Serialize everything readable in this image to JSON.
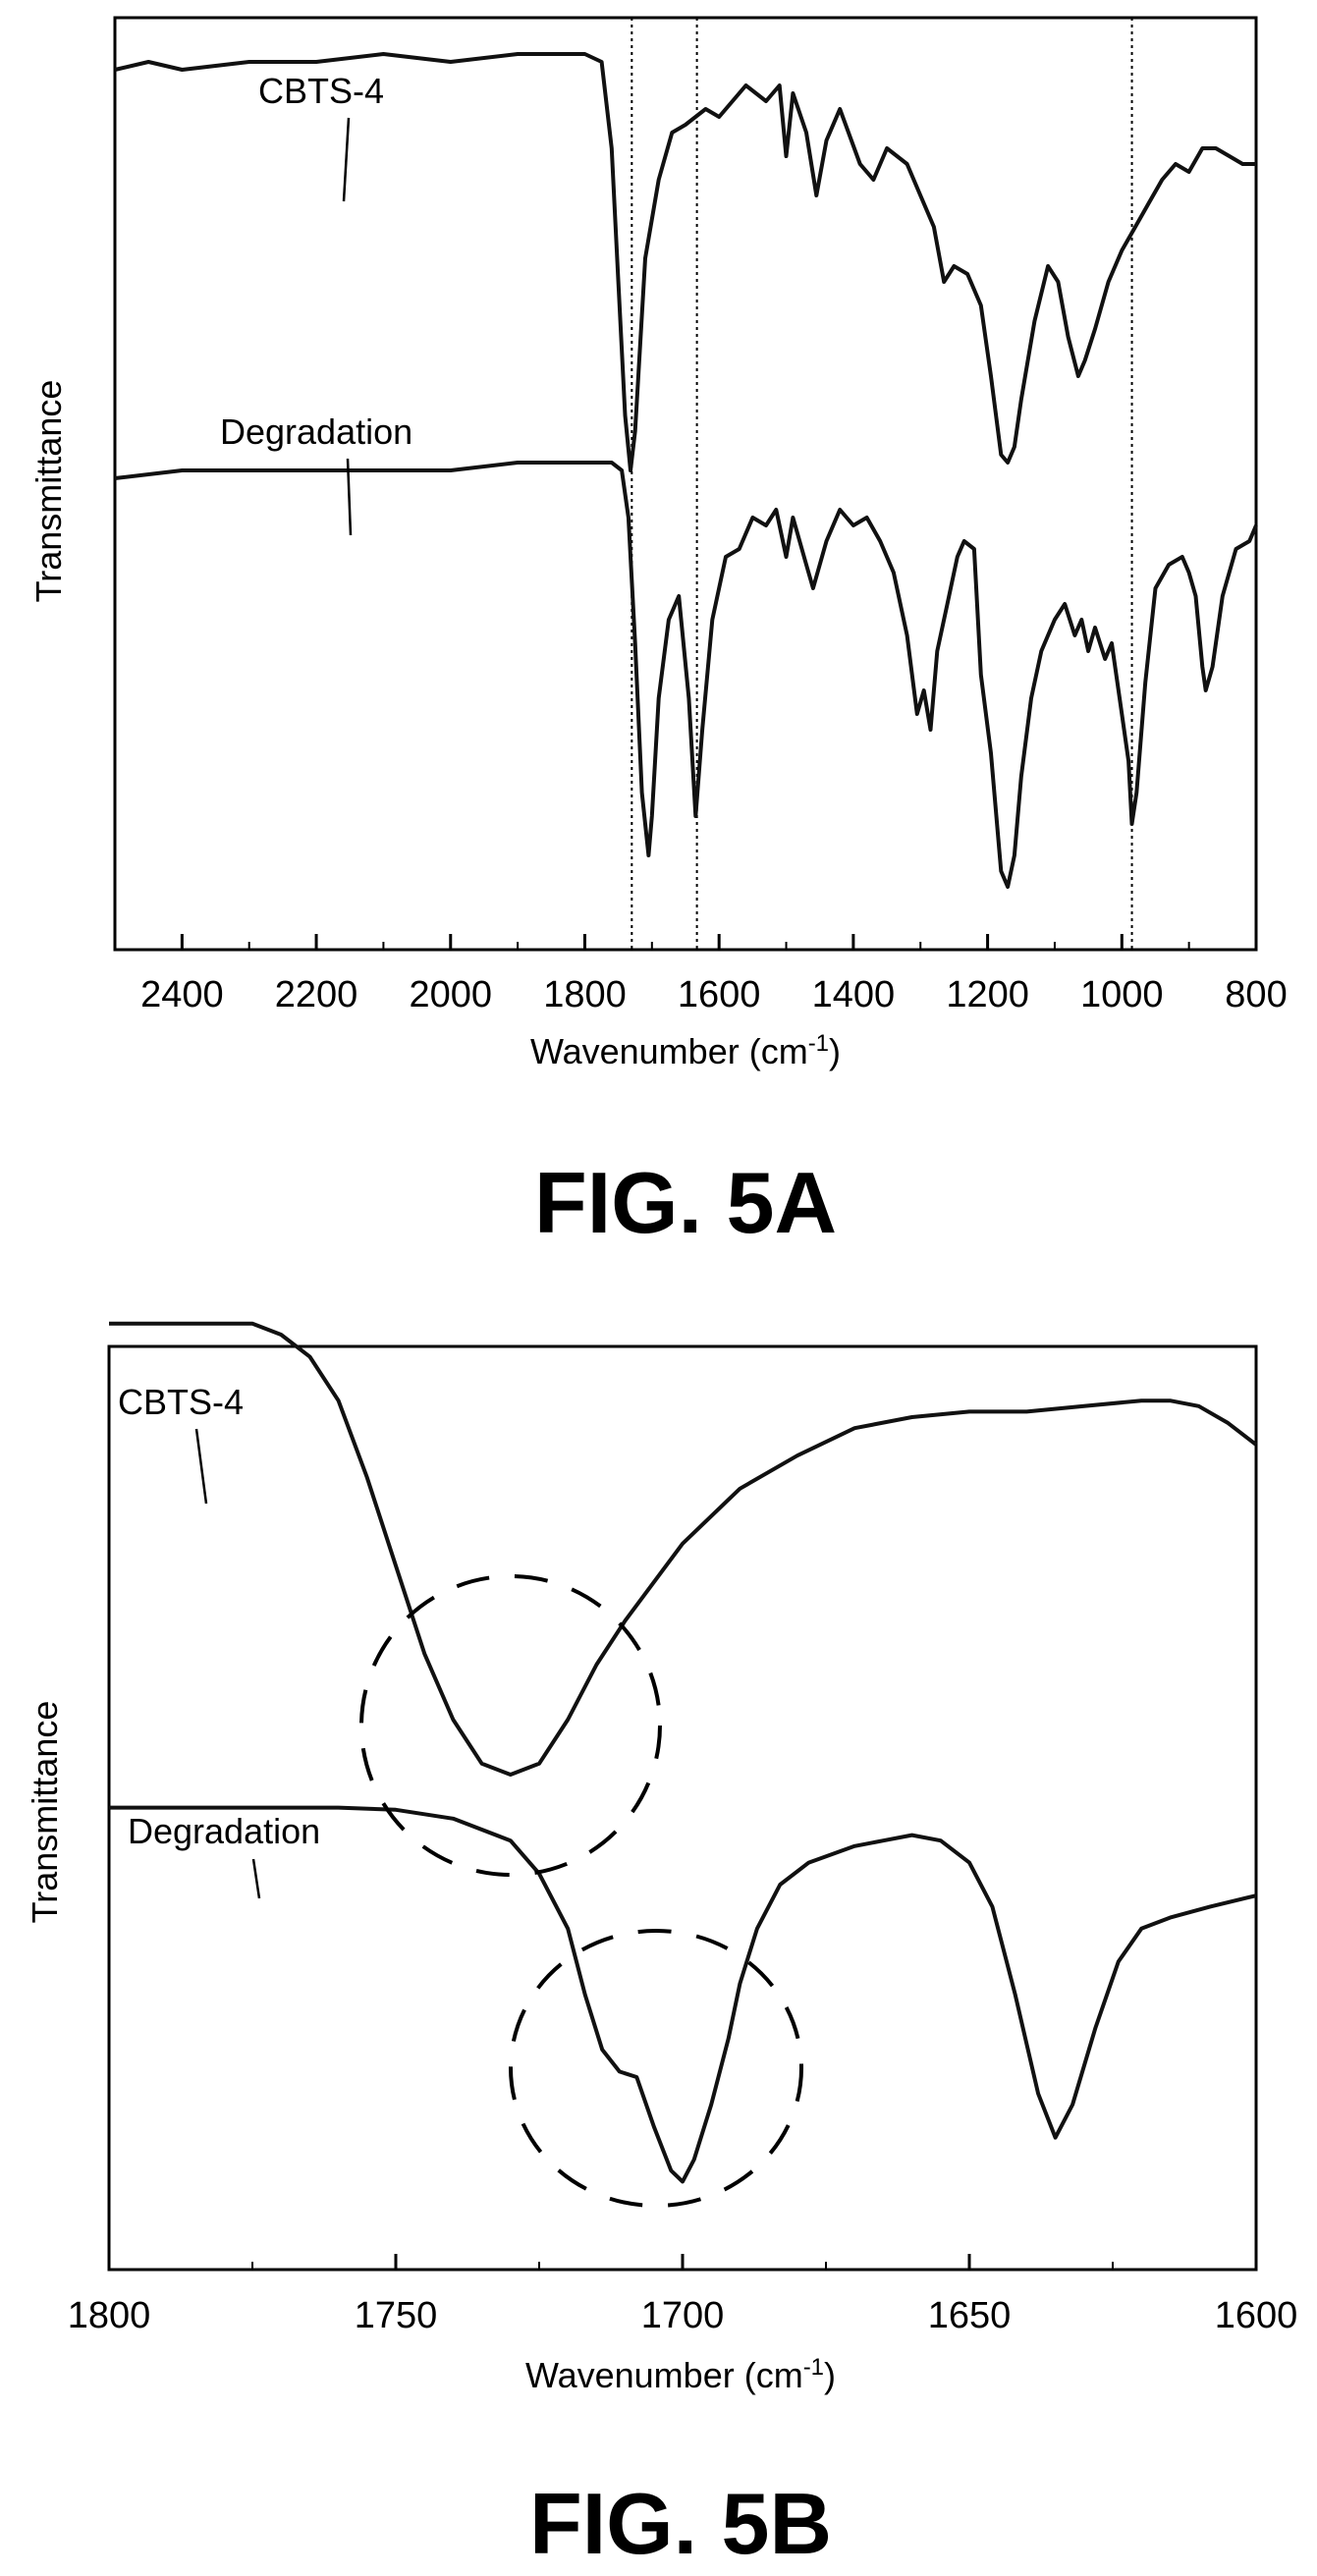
{
  "chart_data": [
    {
      "type": "line",
      "caption": "FIG. 5A",
      "xlabel": "Wavenumber (cm",
      "xlabel_sup": "-1",
      "xlabel_close": ")",
      "ylabel": "Transmittance",
      "xlim": [
        2500,
        800
      ],
      "x_reversed": true,
      "y_ticks_shown": false,
      "x_ticks": [
        "2400",
        "2200",
        "2000",
        "1800",
        "1600",
        "1400",
        "1200",
        "1000",
        "800"
      ],
      "reference_lines": [
        1730,
        1633,
        985
      ],
      "series": [
        {
          "name": "CBTS-4",
          "points": [
            [
              2500,
              0.82
            ],
            [
              2450,
              0.83
            ],
            [
              2400,
              0.82
            ],
            [
              2300,
              0.83
            ],
            [
              2200,
              0.83
            ],
            [
              2100,
              0.84
            ],
            [
              2000,
              0.83
            ],
            [
              1900,
              0.84
            ],
            [
              1800,
              0.84
            ],
            [
              1775,
              0.83
            ],
            [
              1760,
              0.72
            ],
            [
              1750,
              0.55
            ],
            [
              1740,
              0.38
            ],
            [
              1732,
              0.31
            ],
            [
              1725,
              0.36
            ],
            [
              1710,
              0.58
            ],
            [
              1690,
              0.68
            ],
            [
              1670,
              0.74
            ],
            [
              1650,
              0.75
            ],
            [
              1620,
              0.77
            ],
            [
              1600,
              0.76
            ],
            [
              1560,
              0.8
            ],
            [
              1530,
              0.78
            ],
            [
              1510,
              0.8
            ],
            [
              1500,
              0.71
            ],
            [
              1490,
              0.79
            ],
            [
              1470,
              0.74
            ],
            [
              1455,
              0.66
            ],
            [
              1440,
              0.73
            ],
            [
              1420,
              0.77
            ],
            [
              1390,
              0.7
            ],
            [
              1370,
              0.68
            ],
            [
              1350,
              0.72
            ],
            [
              1320,
              0.7
            ],
            [
              1300,
              0.66
            ],
            [
              1280,
              0.62
            ],
            [
              1265,
              0.55
            ],
            [
              1250,
              0.57
            ],
            [
              1230,
              0.56
            ],
            [
              1210,
              0.52
            ],
            [
              1195,
              0.43
            ],
            [
              1180,
              0.33
            ],
            [
              1170,
              0.32
            ],
            [
              1160,
              0.34
            ],
            [
              1150,
              0.4
            ],
            [
              1130,
              0.5
            ],
            [
              1110,
              0.57
            ],
            [
              1095,
              0.55
            ],
            [
              1080,
              0.48
            ],
            [
              1065,
              0.43
            ],
            [
              1055,
              0.45
            ],
            [
              1040,
              0.49
            ],
            [
              1020,
              0.55
            ],
            [
              1000,
              0.59
            ],
            [
              980,
              0.62
            ],
            [
              960,
              0.65
            ],
            [
              940,
              0.68
            ],
            [
              920,
              0.7
            ],
            [
              900,
              0.69
            ],
            [
              880,
              0.72
            ],
            [
              860,
              0.72
            ],
            [
              840,
              0.71
            ],
            [
              820,
              0.7
            ],
            [
              800,
              0.7
            ]
          ]
        },
        {
          "name": "Degradation",
          "points": [
            [
              2500,
              0.3
            ],
            [
              2400,
              0.31
            ],
            [
              2300,
              0.31
            ],
            [
              2200,
              0.31
            ],
            [
              2100,
              0.31
            ],
            [
              2000,
              0.31
            ],
            [
              1900,
              0.32
            ],
            [
              1800,
              0.32
            ],
            [
              1760,
              0.32
            ],
            [
              1745,
              0.31
            ],
            [
              1735,
              0.25
            ],
            [
              1725,
              0.09
            ],
            [
              1715,
              -0.1
            ],
            [
              1705,
              -0.18
            ],
            [
              1700,
              -0.13
            ],
            [
              1690,
              0.02
            ],
            [
              1675,
              0.12
            ],
            [
              1660,
              0.15
            ],
            [
              1645,
              0.02
            ],
            [
              1635,
              -0.13
            ],
            [
              1625,
              -0.02
            ],
            [
              1610,
              0.12
            ],
            [
              1590,
              0.2
            ],
            [
              1570,
              0.21
            ],
            [
              1550,
              0.25
            ],
            [
              1530,
              0.24
            ],
            [
              1515,
              0.26
            ],
            [
              1500,
              0.2
            ],
            [
              1490,
              0.25
            ],
            [
              1470,
              0.19
            ],
            [
              1460,
              0.16
            ],
            [
              1440,
              0.22
            ],
            [
              1420,
              0.26
            ],
            [
              1400,
              0.24
            ],
            [
              1380,
              0.25
            ],
            [
              1360,
              0.22
            ],
            [
              1340,
              0.18
            ],
            [
              1320,
              0.1
            ],
            [
              1305,
              0.0
            ],
            [
              1295,
              0.03
            ],
            [
              1285,
              -0.02
            ],
            [
              1275,
              0.08
            ],
            [
              1260,
              0.14
            ],
            [
              1245,
              0.2
            ],
            [
              1235,
              0.22
            ],
            [
              1220,
              0.21
            ],
            [
              1210,
              0.05
            ],
            [
              1195,
              -0.05
            ],
            [
              1180,
              -0.2
            ],
            [
              1170,
              -0.22
            ],
            [
              1160,
              -0.18
            ],
            [
              1150,
              -0.08
            ],
            [
              1135,
              0.02
            ],
            [
              1120,
              0.08
            ],
            [
              1100,
              0.12
            ],
            [
              1085,
              0.14
            ],
            [
              1070,
              0.1
            ],
            [
              1060,
              0.12
            ],
            [
              1050,
              0.08
            ],
            [
              1040,
              0.11
            ],
            [
              1025,
              0.07
            ],
            [
              1015,
              0.09
            ],
            [
              1000,
              0.0
            ],
            [
              990,
              -0.06
            ],
            [
              985,
              -0.14
            ],
            [
              978,
              -0.1
            ],
            [
              965,
              0.04
            ],
            [
              950,
              0.16
            ],
            [
              930,
              0.19
            ],
            [
              910,
              0.2
            ],
            [
              900,
              0.18
            ],
            [
              890,
              0.15
            ],
            [
              880,
              0.06
            ],
            [
              875,
              0.03
            ],
            [
              865,
              0.06
            ],
            [
              850,
              0.15
            ],
            [
              830,
              0.21
            ],
            [
              810,
              0.22
            ],
            [
              800,
              0.24
            ]
          ]
        }
      ]
    },
    {
      "type": "line",
      "caption": "FIG. 5B",
      "xlabel": "Wavenumber (cm",
      "xlabel_sup": "-1",
      "xlabel_close": ")",
      "ylabel": "Transmittance",
      "xlim": [
        1800,
        1600
      ],
      "x_reversed": true,
      "y_ticks_shown": false,
      "x_ticks": [
        "1800",
        "1750",
        "1700",
        "1650",
        "1600"
      ],
      "annotations": [
        "dashed circle around CBTS-4 minimum near 1730",
        "dashed circle around Degradation doublet near 1705"
      ],
      "series": [
        {
          "name": "CBTS-4",
          "points": [
            [
              1800,
              0.86
            ],
            [
              1790,
              0.86
            ],
            [
              1780,
              0.86
            ],
            [
              1775,
              0.86
            ],
            [
              1770,
              0.85
            ],
            [
              1765,
              0.83
            ],
            [
              1760,
              0.79
            ],
            [
              1755,
              0.72
            ],
            [
              1750,
              0.64
            ],
            [
              1745,
              0.56
            ],
            [
              1740,
              0.5
            ],
            [
              1735,
              0.46
            ],
            [
              1730,
              0.45
            ],
            [
              1725,
              0.46
            ],
            [
              1720,
              0.5
            ],
            [
              1715,
              0.55
            ],
            [
              1710,
              0.59
            ],
            [
              1700,
              0.66
            ],
            [
              1690,
              0.71
            ],
            [
              1680,
              0.74
            ],
            [
              1670,
              0.765
            ],
            [
              1660,
              0.775
            ],
            [
              1650,
              0.78
            ],
            [
              1640,
              0.78
            ],
            [
              1630,
              0.785
            ],
            [
              1620,
              0.79
            ],
            [
              1615,
              0.79
            ],
            [
              1610,
              0.785
            ],
            [
              1605,
              0.77
            ],
            [
              1600,
              0.75
            ]
          ]
        },
        {
          "name": "Degradation",
          "points": [
            [
              1800,
              0.42
            ],
            [
              1780,
              0.42
            ],
            [
              1770,
              0.42
            ],
            [
              1760,
              0.42
            ],
            [
              1750,
              0.418
            ],
            [
              1740,
              0.41
            ],
            [
              1730,
              0.39
            ],
            [
              1725,
              0.36
            ],
            [
              1720,
              0.31
            ],
            [
              1717,
              0.25
            ],
            [
              1714,
              0.2
            ],
            [
              1711,
              0.18
            ],
            [
              1708,
              0.175
            ],
            [
              1705,
              0.13
            ],
            [
              1702,
              0.09
            ],
            [
              1700,
              0.08
            ],
            [
              1698,
              0.1
            ],
            [
              1695,
              0.15
            ],
            [
              1692,
              0.21
            ],
            [
              1690,
              0.26
            ],
            [
              1687,
              0.31
            ],
            [
              1683,
              0.35
            ],
            [
              1678,
              0.37
            ],
            [
              1670,
              0.385
            ],
            [
              1665,
              0.39
            ],
            [
              1660,
              0.395
            ],
            [
              1655,
              0.39
            ],
            [
              1650,
              0.37
            ],
            [
              1646,
              0.33
            ],
            [
              1642,
              0.25
            ],
            [
              1638,
              0.16
            ],
            [
              1635,
              0.12
            ],
            [
              1632,
              0.15
            ],
            [
              1628,
              0.22
            ],
            [
              1624,
              0.28
            ],
            [
              1620,
              0.31
            ],
            [
              1615,
              0.32
            ],
            [
              1608,
              0.33
            ],
            [
              1600,
              0.34
            ]
          ]
        }
      ]
    }
  ]
}
